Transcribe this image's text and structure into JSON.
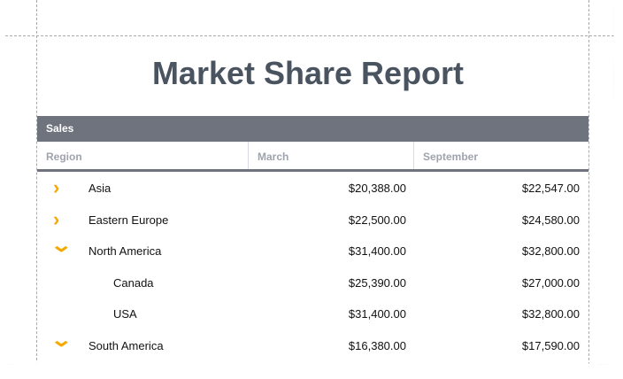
{
  "report": {
    "title": "Market Share Report",
    "band": "Sales",
    "columns": [
      "Region",
      "March",
      "September"
    ],
    "rows": [
      {
        "region": "Asia",
        "march": "$20,388.00",
        "september": "$22,547.00",
        "expanded": false,
        "level": 0
      },
      {
        "region": "Eastern Europe",
        "march": "$22,500.00",
        "september": "$24,580.00",
        "expanded": false,
        "level": 0
      },
      {
        "region": "North America",
        "march": "$31,400.00",
        "september": "$32,800.00",
        "expanded": true,
        "level": 0
      },
      {
        "region": "Canada",
        "march": "$25,390.00",
        "september": "$27,000.00",
        "level": 1
      },
      {
        "region": "USA",
        "march": "$31,400.00",
        "september": "$32,800.00",
        "level": 1
      },
      {
        "region": "South America",
        "march": "$16,380.00",
        "september": "$17,590.00",
        "expanded": true,
        "level": 0
      }
    ]
  },
  "colors": {
    "accent": "#f5a800",
    "header": "#6e737e"
  }
}
